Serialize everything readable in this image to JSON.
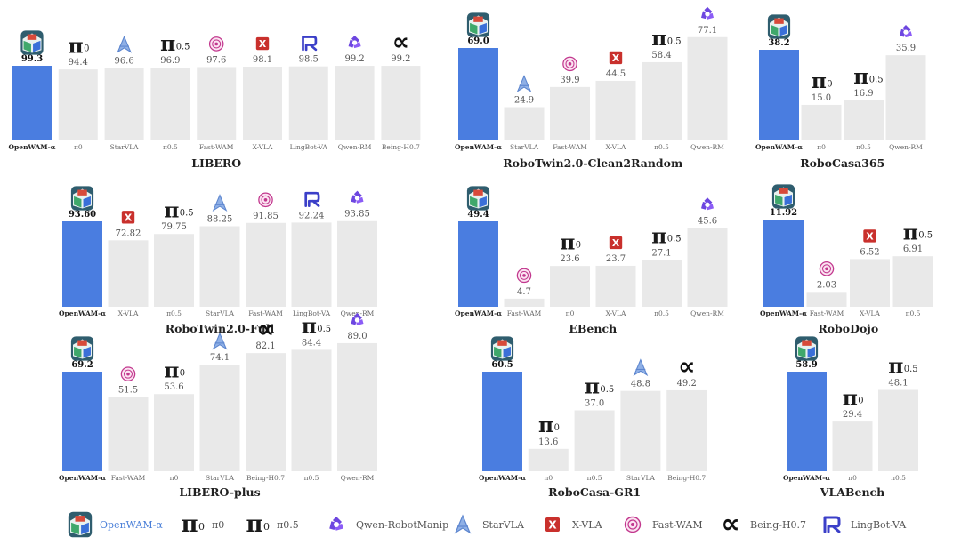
{
  "colors": {
    "highlight": "#4a7de0",
    "bar": "#e9e9e9",
    "text": "#555555",
    "title": "#222222",
    "legend_brand": "#4a7fd8"
  },
  "icons": {
    "openwam": "openwam-logo-icon",
    "pi0": "pi0-symbol-icon",
    "pi05": "pi05-symbol-icon",
    "starvla": "starvla-icon",
    "xvla": "xvla-icon",
    "fastwam": "fastwam-icon",
    "lingbot": "lingbot-icon",
    "qwen": "qwen-icon",
    "being": "being-alpha-icon"
  },
  "chart_data": [
    {
      "type": "bar",
      "title": "LIBERO",
      "ylim": [
        0,
        105
      ],
      "categories": [
        "OpenWAM-α",
        "π0",
        "StarVLA",
        "π0.5",
        "Fast-WAM",
        "X-VLA",
        "LingBot-VA",
        "Qwen-RM",
        "Being-H0.7"
      ],
      "icons": [
        "openwam",
        "pi0",
        "starvla",
        "pi05",
        "fastwam",
        "xvla",
        "lingbot",
        "qwen",
        "being"
      ],
      "values": [
        99.3,
        94.4,
        96.6,
        96.9,
        97.6,
        98.1,
        98.5,
        99.2,
        99.2
      ],
      "labels": [
        "99.3",
        "94.4",
        "96.6",
        "96.9",
        "97.6",
        "98.1",
        "98.5",
        "99.2",
        "99.2"
      ]
    },
    {
      "type": "bar",
      "title": "RoboTwin2.0-Clean2Random",
      "ylim": [
        0,
        102
      ],
      "categories": [
        "OpenWAM-α",
        "StarVLA",
        "Fast-WAM",
        "X-VLA",
        "π0.5",
        "Qwen-RM"
      ],
      "icons": [
        "openwam",
        "starvla",
        "fastwam",
        "xvla",
        "pi05",
        "qwen"
      ],
      "values": [
        69.0,
        24.9,
        39.9,
        44.5,
        58.4,
        77.1
      ],
      "labels": [
        "69.0",
        "24.9",
        "39.9",
        "44.5",
        "58.4",
        "77.1"
      ]
    },
    {
      "type": "bar",
      "title": "RoboCasa365",
      "ylim": [
        0,
        50
      ],
      "categories": [
        "OpenWAM-α",
        "π0",
        "π0.5",
        "Qwen-RM"
      ],
      "icons": [
        "openwam",
        "pi0",
        "pi05",
        "qwen"
      ],
      "values": [
        38.2,
        15.0,
        16.9,
        35.9
      ],
      "labels": [
        "38.2",
        "15.0",
        "16.9",
        "35.9"
      ]
    },
    {
      "type": "bar",
      "title": "RoboTwin2.0-Full",
      "ylim": [
        0,
        110
      ],
      "categories": [
        "OpenWAM-α",
        "X-VLA",
        "π0.5",
        "StarVLA",
        "Fast-WAM",
        "LingBot-VA",
        "Qwen-RM"
      ],
      "icons": [
        "openwam",
        "xvla",
        "pi05",
        "starvla",
        "fastwam",
        "lingbot",
        "qwen"
      ],
      "values": [
        93.6,
        72.82,
        79.75,
        88.25,
        91.85,
        92.24,
        93.85
      ],
      "labels": [
        "93.60",
        "72.82",
        "79.75",
        "88.25",
        "91.85",
        "92.24",
        "93.85"
      ]
    },
    {
      "type": "bar",
      "title": "EBench",
      "ylim": [
        0,
        65
      ],
      "categories": [
        "OpenWAM-α",
        "Fast-WAM",
        "π0",
        "X-VLA",
        "π0.5",
        "Qwen-RM"
      ],
      "icons": [
        "openwam",
        "fastwam",
        "pi0",
        "xvla",
        "pi05",
        "qwen"
      ],
      "values": [
        49.4,
        4.7,
        23.6,
        23.7,
        27.1,
        45.6
      ],
      "labels": [
        "49.4",
        "4.7",
        "23.6",
        "23.7",
        "27.1",
        "45.6"
      ]
    },
    {
      "type": "bar",
      "title": "RoboDojo",
      "ylim": [
        0,
        14
      ],
      "categories": [
        "OpenWAM-α",
        "Fast-WAM",
        "X-VLA",
        "π0.5"
      ],
      "icons": [
        "openwam",
        "fastwam",
        "xvla",
        "pi05"
      ],
      "values": [
        11.92,
        2.03,
        6.52,
        6.91
      ],
      "labels": [
        "11.92",
        "2.03",
        "6.52",
        "6.91"
      ]
    },
    {
      "type": "bar",
      "title": "LIBERO-plus",
      "ylim": [
        0,
        103
      ],
      "categories": [
        "OpenWAM-α",
        "Fast-WAM",
        "π0",
        "StarVLA",
        "Being-H0.7",
        "π0.5",
        "Qwen-RM"
      ],
      "icons": [
        "openwam",
        "fastwam",
        "pi0",
        "starvla",
        "being",
        "pi05",
        "qwen"
      ],
      "values": [
        69.2,
        51.5,
        53.6,
        74.1,
        82.1,
        84.4,
        89.0
      ],
      "labels": [
        "69.2",
        "51.5",
        "53.6",
        "74.1",
        "82.1",
        "84.4",
        "89.0"
      ]
    },
    {
      "type": "bar",
      "title": "RoboCasa-GR1",
      "ylim": [
        0,
        72
      ],
      "categories": [
        "OpenWAM-α",
        "π0",
        "π0.5",
        "StarVLA",
        "Being-H0.7"
      ],
      "icons": [
        "openwam",
        "pi0",
        "pi05",
        "starvla",
        "being"
      ],
      "values": [
        60.5,
        13.6,
        37.0,
        48.8,
        49.2
      ],
      "labels": [
        "60.5",
        "13.6",
        "37.0",
        "48.8",
        "49.2"
      ]
    },
    {
      "type": "bar",
      "title": "VLABench",
      "ylim": [
        0,
        69
      ],
      "categories": [
        "OpenWAM-α",
        "π0",
        "π0.5"
      ],
      "icons": [
        "openwam",
        "pi0",
        "pi05"
      ],
      "values": [
        58.9,
        29.4,
        48.1
      ],
      "labels": [
        "58.9",
        "29.4",
        "48.1"
      ]
    }
  ],
  "legend": [
    {
      "icon": "openwam",
      "label": "OpenWAM-α"
    },
    {
      "icon": "pi0",
      "label": "π0"
    },
    {
      "icon": "pi05",
      "label": "π0.5"
    },
    {
      "icon": "qwen",
      "label": "Qwen-RobotManip"
    },
    {
      "icon": "starvla",
      "label": "StarVLA"
    },
    {
      "icon": "xvla",
      "label": "X-VLA"
    },
    {
      "icon": "fastwam",
      "label": "Fast-WAM"
    },
    {
      "icon": "being",
      "label": "Being-H0.7"
    },
    {
      "icon": "lingbot",
      "label": "LingBot-VA"
    }
  ]
}
